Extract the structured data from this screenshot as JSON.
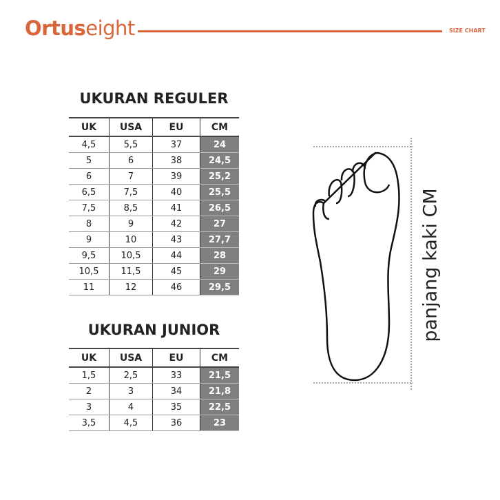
{
  "header": {
    "brand_bold": "Ortus",
    "brand_light": "eight",
    "label": "SIZE CHART",
    "accent": "#d9663a"
  },
  "reguler": {
    "title": "UKURAN REGULER",
    "columns": [
      "UK",
      "USA",
      "EU",
      "CM"
    ],
    "rows": [
      [
        "4,5",
        "5,5",
        "37",
        "24"
      ],
      [
        "5",
        "6",
        "38",
        "24,5"
      ],
      [
        "6",
        "7",
        "39",
        "25,2"
      ],
      [
        "6,5",
        "7,5",
        "40",
        "25,5"
      ],
      [
        "7,5",
        "8,5",
        "41",
        "26,5"
      ],
      [
        "8",
        "9",
        "42",
        "27"
      ],
      [
        "9",
        "10",
        "43",
        "27,7"
      ],
      [
        "9,5",
        "10,5",
        "44",
        "28"
      ],
      [
        "10,5",
        "11,5",
        "45",
        "29"
      ],
      [
        "11",
        "12",
        "46",
        "29,5"
      ]
    ]
  },
  "junior": {
    "title": "UKURAN JUNIOR",
    "columns": [
      "UK",
      "USA",
      "EU",
      "CM"
    ],
    "rows": [
      [
        "1,5",
        "2,5",
        "33",
        "21,5"
      ],
      [
        "2",
        "3",
        "34",
        "21,8"
      ],
      [
        "3",
        "4",
        "35",
        "22,5"
      ],
      [
        "3,5",
        "4,5",
        "36",
        "23"
      ]
    ]
  },
  "foot": {
    "label": "panjang kaki CM",
    "icon": "foot-outline-icon"
  }
}
